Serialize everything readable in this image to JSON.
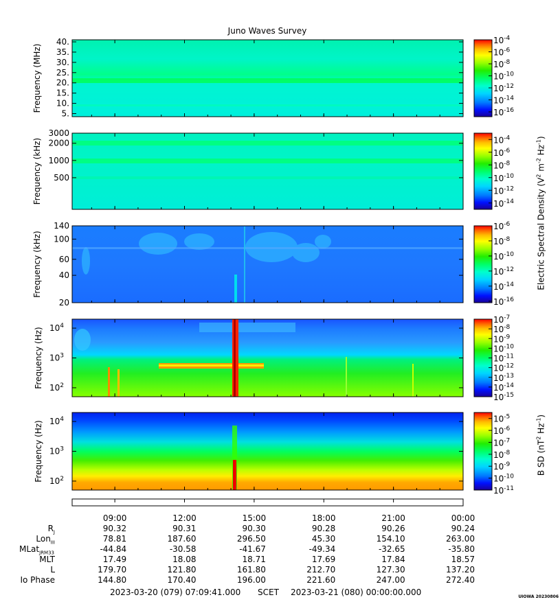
{
  "title": "Juno Waves Survey",
  "colors": {
    "spectrum": [
      "#1a0099",
      "#0011ff",
      "#0077ff",
      "#00d5ff",
      "#00ffcc",
      "#00ff66",
      "#22ee00",
      "#99ff00",
      "#ffff00",
      "#ffbb00",
      "#ff6600",
      "#ff0000"
    ]
  },
  "chart_data": [
    {
      "type": "heatmap",
      "panel": 1,
      "ylabel": "Frequency (MHz)",
      "yticks": [
        "40.",
        "35.",
        "30.",
        "25.",
        "20.",
        "15.",
        "10.",
        "5."
      ],
      "ytick_values": [
        40,
        35,
        30,
        25,
        20,
        15,
        10,
        5
      ],
      "ylim": [
        3.5,
        41
      ],
      "yscale": "linear",
      "colorbar_ticks": [
        "10-4",
        "10-6",
        "10-8",
        "10-10",
        "10-12",
        "10-14",
        "10-16"
      ],
      "colorbar_range": [
        -16.8,
        -4
      ]
    },
    {
      "type": "heatmap",
      "panel": 2,
      "ylabel": "Frequency (kHz)",
      "yticks": [
        "3000",
        "2000",
        "1000",
        "500"
      ],
      "ytick_values": [
        3000,
        2000,
        1000,
        500
      ],
      "ylim": [
        140,
        3000
      ],
      "yscale": "log",
      "colorbar_ticks": [
        "10-4",
        "10-6",
        "10-8",
        "10-10",
        "10-12",
        "10-14"
      ],
      "colorbar_range": [
        -15,
        -3
      ]
    },
    {
      "type": "heatmap",
      "panel": 3,
      "ylabel": "Frequency (kHz)",
      "yticks": [
        "140",
        "100",
        "60",
        "40",
        "20"
      ],
      "ytick_values": [
        140,
        100,
        60,
        40,
        20
      ],
      "ylim": [
        20,
        140
      ],
      "yscale": "log",
      "colorbar_ticks": [
        "10-6",
        "10-8",
        "10-10",
        "10-12",
        "10-14",
        "10-16"
      ],
      "colorbar_range": [
        -16.2,
        -6
      ]
    },
    {
      "type": "heatmap",
      "panel": 4,
      "ylabel": "Frequency (Hz)",
      "yticks": [
        "10^4",
        "10^3",
        "10^2"
      ],
      "ytick_values": [
        10000,
        1000,
        100
      ],
      "ylim": [
        50,
        20000
      ],
      "yscale": "log",
      "colorbar_ticks": [
        "10-7",
        "10-8",
        "10-9",
        "10-10",
        "10-11",
        "10-12",
        "10-13",
        "10-14",
        "10-15"
      ],
      "colorbar_range": [
        -15,
        -7
      ]
    },
    {
      "type": "heatmap",
      "panel": 5,
      "ylabel": "Frequency (Hz)",
      "yticks": [
        "10^4",
        "10^3",
        "10^2"
      ],
      "ytick_values": [
        10000,
        1000,
        100
      ],
      "ylim": [
        50,
        20000
      ],
      "yscale": "log",
      "colorbar_ticks": [
        "10-5",
        "10-6",
        "10-7",
        "10-8",
        "10-9",
        "10-10",
        "10-11"
      ],
      "colorbar_range": [
        -11,
        -4.5
      ]
    }
  ],
  "colorbar_label_1": "Electric Spectral Density (V",
  "colorbar_label_1b": " m",
  "colorbar_label_1c": " Hz",
  "colorbar_label_1d": ")",
  "colorbar_label_2": "B SD (nT",
  "colorbar_label_2b": " Hz",
  "colorbar_label_2c": ")",
  "time_axis": {
    "ticks": [
      "09:00",
      "12:00",
      "15:00",
      "18:00",
      "21:00",
      "00:00"
    ],
    "tick_hours": [
      9,
      12,
      15,
      18,
      21,
      24
    ],
    "start_hour": 7.1614,
    "end_hour": 24.0
  },
  "ephemeris": {
    "rows": [
      {
        "label": "R",
        "sub": "J",
        "values": [
          "90.32",
          "90.31",
          "90.30",
          "90.28",
          "90.26",
          "90.24"
        ]
      },
      {
        "label": "Lon",
        "sub": "III",
        "values": [
          "78.81",
          "187.60",
          "296.50",
          "45.30",
          "154.10",
          "263.00"
        ]
      },
      {
        "label": "MLat",
        "sub": "JRM33",
        "values": [
          "-44.84",
          "-30.58",
          "-41.67",
          "-49.34",
          "-32.65",
          "-35.80"
        ]
      },
      {
        "label": "MLT",
        "sub": "",
        "values": [
          "17.49",
          "18.08",
          "18.71",
          "17.69",
          "17.84",
          "18.57"
        ]
      },
      {
        "label": "L",
        "sub": "",
        "values": [
          "179.70",
          "121.80",
          "161.80",
          "212.70",
          "127.30",
          "137.20"
        ]
      },
      {
        "label": "Io Phase",
        "sub": "",
        "values": [
          "144.80",
          "170.40",
          "196.00",
          "221.60",
          "247.00",
          "272.40"
        ]
      }
    ]
  },
  "footer": {
    "start": "2023-03-20 (079) 07:09:41.000",
    "scet": "SCET",
    "end": "2023-03-21 (080) 00:00:00.000"
  },
  "stamp": "UIOWA 20230806"
}
